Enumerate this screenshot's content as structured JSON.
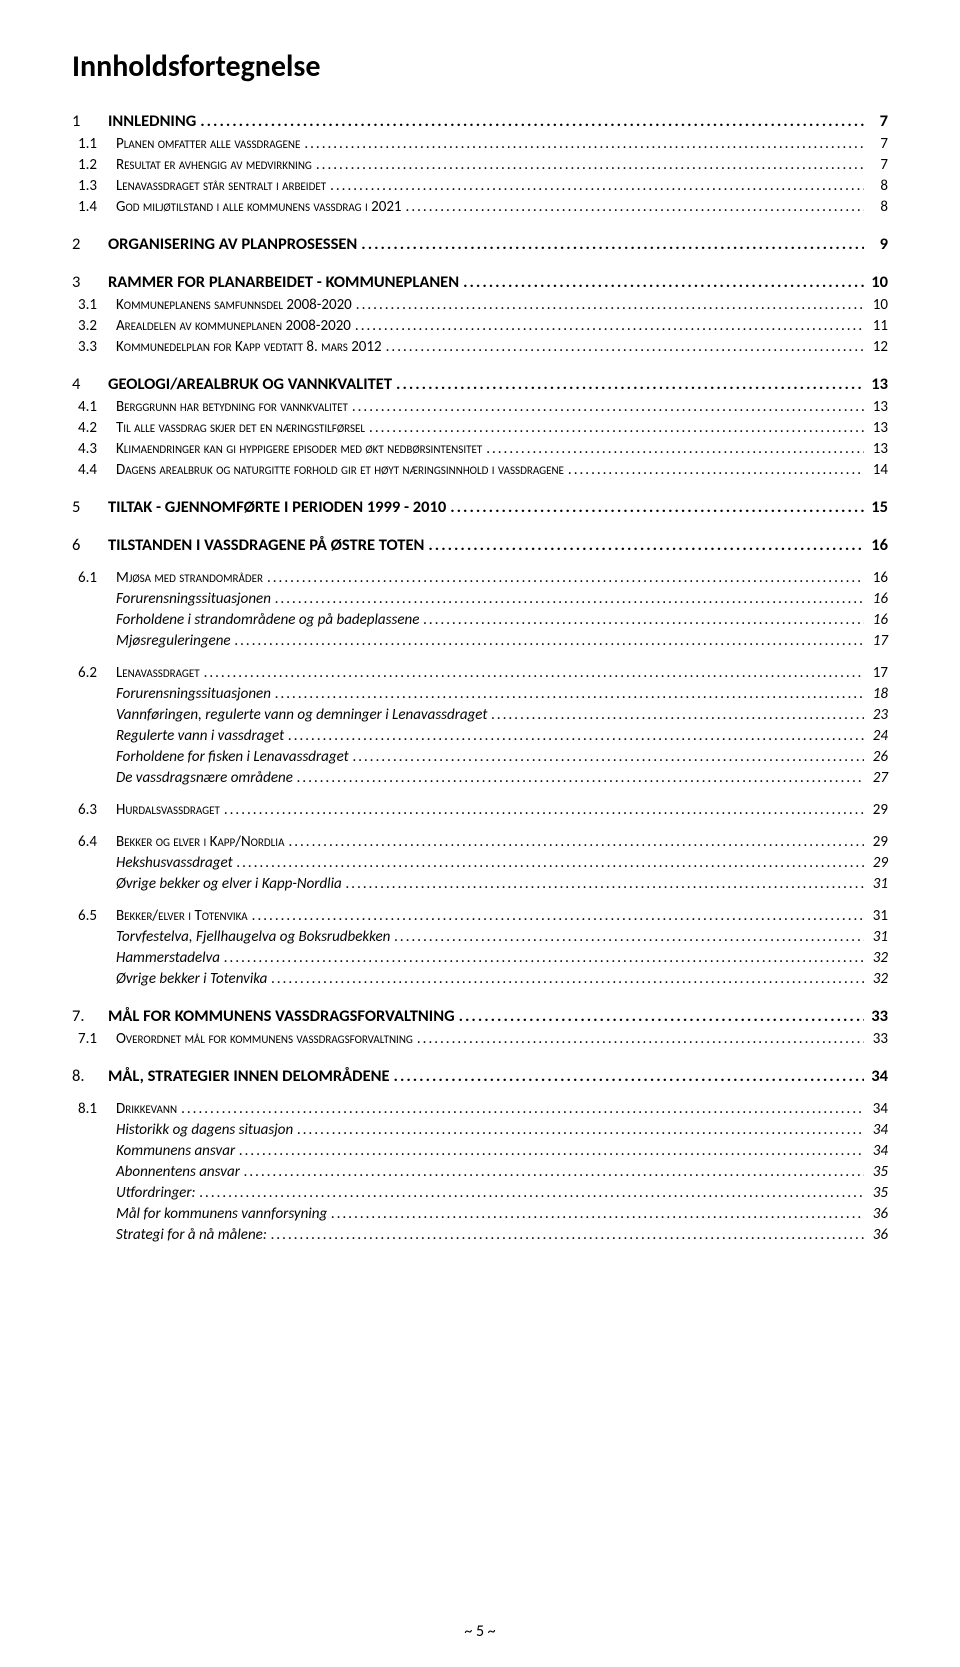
{
  "title": "Innholdsfortegnelse",
  "footer_page": "~ 5 ~",
  "toc": [
    {
      "level": 1,
      "num": "1",
      "label": "INNLEDNING",
      "page": "7"
    },
    {
      "level": 2,
      "num": "1.1",
      "label": "Planen omfatter alle vassdragene",
      "page": "7"
    },
    {
      "level": 2,
      "num": "1.2",
      "label": "Resultat er avhengig av medvirkning",
      "page": "7"
    },
    {
      "level": 2,
      "num": "1.3",
      "label": "Lenavassdraget står sentralt i arbeidet",
      "page": "8"
    },
    {
      "level": 2,
      "num": "1.4",
      "label": "God miljøtilstand i alle kommunens vassdrag i 2021",
      "page": "8"
    },
    {
      "level": 1,
      "num": "2",
      "label": "ORGANISERING AV PLANPROSESSEN",
      "page": "9"
    },
    {
      "level": 1,
      "num": "3",
      "label": "RAMMER FOR PLANARBEIDET - KOMMUNEPLANEN",
      "page": "10"
    },
    {
      "level": 2,
      "num": "3.1",
      "label": "Kommuneplanens samfunnsdel 2008-2020",
      "page": "10"
    },
    {
      "level": 2,
      "num": "3.2",
      "label": "Arealdelen av kommuneplanen 2008-2020",
      "page": "11"
    },
    {
      "level": 2,
      "num": "3.3",
      "label": "Kommunedelplan for Kapp vedtatt 8. mars 2012",
      "page": "12"
    },
    {
      "level": 1,
      "num": "4",
      "label": "GEOLOGI/AREALBRUK OG VANNKVALITET",
      "page": "13"
    },
    {
      "level": 2,
      "num": "4.1",
      "label": "Berggrunn har betydning for vannkvalitet",
      "page": "13"
    },
    {
      "level": 2,
      "num": "4.2",
      "label": "Til alle vassdrag skjer det en næringstilførsel",
      "page": "13"
    },
    {
      "level": 2,
      "num": "4.3",
      "label": "Klimaendringer kan gi hyppigere episoder med økt nedbørsintensitet",
      "page": "13"
    },
    {
      "level": 2,
      "num": "4.4",
      "label": "Dagens arealbruk og naturgitte forhold gir et høyt næringsinnhold i vassdragene",
      "page": "14"
    },
    {
      "level": 1,
      "num": "5",
      "label": "TILTAK - GJENNOMFØRTE I PERIODEN 1999 - 2010",
      "page": "15"
    },
    {
      "level": 1,
      "num": "6",
      "label": "TILSTANDEN I VASSDRAGENE PÅ ØSTRE TOTEN",
      "page": "16"
    },
    {
      "level": 2,
      "num": "6.1",
      "label": "Mjøsa med strandområder",
      "page": "16",
      "group_start": true
    },
    {
      "level": 3,
      "label": "Forurensningssituasjonen",
      "page": "16"
    },
    {
      "level": 3,
      "label": "Forholdene i strandområdene og på badeplassene",
      "page": "16"
    },
    {
      "level": 3,
      "label": "Mjøsreguleringene",
      "page": "17"
    },
    {
      "level": 2,
      "num": "6.2",
      "label": "Lenavassdraget",
      "page": "17",
      "group_start": true
    },
    {
      "level": 3,
      "label": "Forurensningssituasjonen",
      "page": "18"
    },
    {
      "level": 3,
      "label": "Vannføringen, regulerte vann og demninger i Lenavassdraget",
      "page": "23"
    },
    {
      "level": 3,
      "label": "Regulerte vann i vassdraget",
      "page": "24"
    },
    {
      "level": 3,
      "label": "Forholdene for fisken i Lenavassdraget",
      "page": "26"
    },
    {
      "level": 3,
      "label": "De vassdragsnære områdene",
      "page": "27"
    },
    {
      "level": 2,
      "num": "6.3",
      "label": "Hurdalsvassdraget",
      "page": "29",
      "group_start": true
    },
    {
      "level": 2,
      "num": "6.4",
      "label": "Bekker og elver i Kapp/Nordlia",
      "page": "29",
      "group_start": true
    },
    {
      "level": 3,
      "label": "Hekshusvassdraget",
      "page": "29"
    },
    {
      "level": 3,
      "label": "Øvrige bekker og elver i Kapp-Nordlia",
      "page": "31"
    },
    {
      "level": 2,
      "num": "6.5",
      "label": "Bekker/elver i Totenvika",
      "page": "31",
      "group_start": true
    },
    {
      "level": 3,
      "label": "Torvfestelva, Fjellhaugelva og Boksrudbekken",
      "page": "31"
    },
    {
      "level": 3,
      "label": "Hammerstadelva",
      "page": "32"
    },
    {
      "level": 3,
      "label": "Øvrige bekker i Totenvika",
      "page": "32"
    },
    {
      "level": 1,
      "num": "7.",
      "label": "MÅL FOR KOMMUNENS VASSDRAGSFORVALTNING",
      "page": "33"
    },
    {
      "level": 2,
      "num": "7.1",
      "label": "Overordnet mål for kommunens vassdragsforvaltning",
      "page": "33"
    },
    {
      "level": 1,
      "num": "8.",
      "label": "MÅL, STRATEGIER INNEN DELOMRÅDENE",
      "page": "34"
    },
    {
      "level": 2,
      "num": "8.1",
      "label": "Drikkevann",
      "page": "34",
      "group_start": true
    },
    {
      "level": 3,
      "label": "Historikk og dagens situasjon",
      "page": "34"
    },
    {
      "level": 3,
      "label": "Kommunens ansvar",
      "page": "34"
    },
    {
      "level": 3,
      "label": "Abonnentens ansvar",
      "page": "35"
    },
    {
      "level": 3,
      "label": "Utfordringer:",
      "page": "35"
    },
    {
      "level": 3,
      "label": "Mål for kommunens vannforsyning",
      "page": "36"
    },
    {
      "level": 3,
      "label": "Strategi for å nå målene:",
      "page": "36"
    }
  ]
}
